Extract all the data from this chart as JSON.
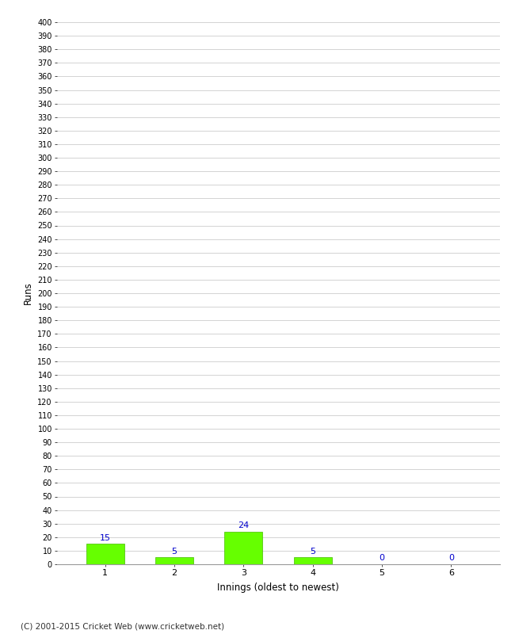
{
  "xlabel": "Innings (oldest to newest)",
  "ylabel": "Runs",
  "categories": [
    "1",
    "2",
    "3",
    "4",
    "5",
    "6"
  ],
  "values": [
    15,
    5,
    24,
    5,
    0,
    0
  ],
  "bar_color": "#66ff00",
  "bar_edge_color": "#44bb00",
  "label_color": "#0000cc",
  "ylim": [
    0,
    400
  ],
  "background_color": "#ffffff",
  "grid_color": "#cccccc",
  "footer": "(C) 2001-2015 Cricket Web (www.cricketweb.net)"
}
